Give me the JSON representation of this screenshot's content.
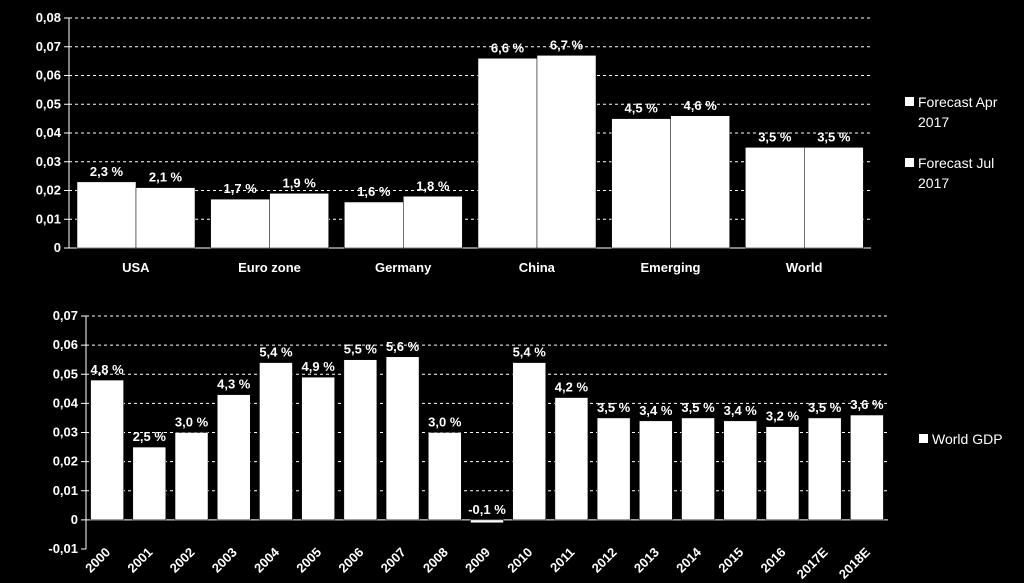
{
  "chart_data": [
    {
      "type": "bar",
      "title": "",
      "xlabel": "",
      "ylabel": "",
      "ylim": [
        0,
        0.08
      ],
      "yticks": [
        "0",
        "0,01",
        "0,02",
        "0,03",
        "0,04",
        "0,05",
        "0,06",
        "0,07",
        "0,08"
      ],
      "grid": "horizontal dashed",
      "legend_position": "right",
      "categories": [
        "USA",
        "Euro zone",
        "Germany",
        "China",
        "Emerging",
        "World"
      ],
      "series": [
        {
          "name": "Forecast Apr 2017",
          "legend_lines": [
            "Forecast Apr",
            "2017"
          ],
          "values": [
            0.023,
            0.017,
            0.016,
            0.066,
            0.045,
            0.035
          ],
          "labels": [
            "2,3 %",
            "1,7 %",
            "1,6 %",
            "6,6 %",
            "4,5 %",
            "3,5 %"
          ]
        },
        {
          "name": "Forecast Jul 2017",
          "legend_lines": [
            "Forecast Jul",
            "2017"
          ],
          "values": [
            0.021,
            0.019,
            0.018,
            0.067,
            0.046,
            0.035
          ],
          "labels": [
            "2,1 %",
            "1,9 %",
            "1,8 %",
            "6,7 %",
            "4,6 %",
            "3,5 %"
          ]
        }
      ]
    },
    {
      "type": "bar",
      "title": "",
      "xlabel": "",
      "ylabel": "",
      "ylim": [
        -0.01,
        0.07
      ],
      "yticks": [
        "-0,01",
        "0",
        "0,01",
        "0,02",
        "0,03",
        "0,04",
        "0,05",
        "0,06",
        "0,07"
      ],
      "grid": "horizontal dashed",
      "legend_position": "right",
      "categories": [
        "2000",
        "2001",
        "2002",
        "2003",
        "2004",
        "2005",
        "2006",
        "2007",
        "2008",
        "2009",
        "2010",
        "2011",
        "2012",
        "2013",
        "2014",
        "2015",
        "2016",
        "2017E",
        "2018E"
      ],
      "series": [
        {
          "name": "World GDP",
          "legend_lines": [
            "World GDP"
          ],
          "values": [
            0.048,
            0.025,
            0.03,
            0.043,
            0.054,
            0.049,
            0.055,
            0.056,
            0.03,
            -0.001,
            0.054,
            0.042,
            0.035,
            0.034,
            0.035,
            0.034,
            0.032,
            0.035,
            0.036
          ],
          "labels": [
            "4,8 %",
            "2,5 %",
            "3,0 %",
            "4,3 %",
            "5,4 %",
            "4,9 %",
            "5,5 %",
            "5,6 %",
            "3,0 %",
            "-0,1 %",
            "5,4 %",
            "4,2 %",
            "3,5 %",
            "3,4 %",
            "3,5 %",
            "3,4 %",
            "3,2 %",
            "3,5 %",
            "3,6 %"
          ]
        }
      ]
    }
  ]
}
